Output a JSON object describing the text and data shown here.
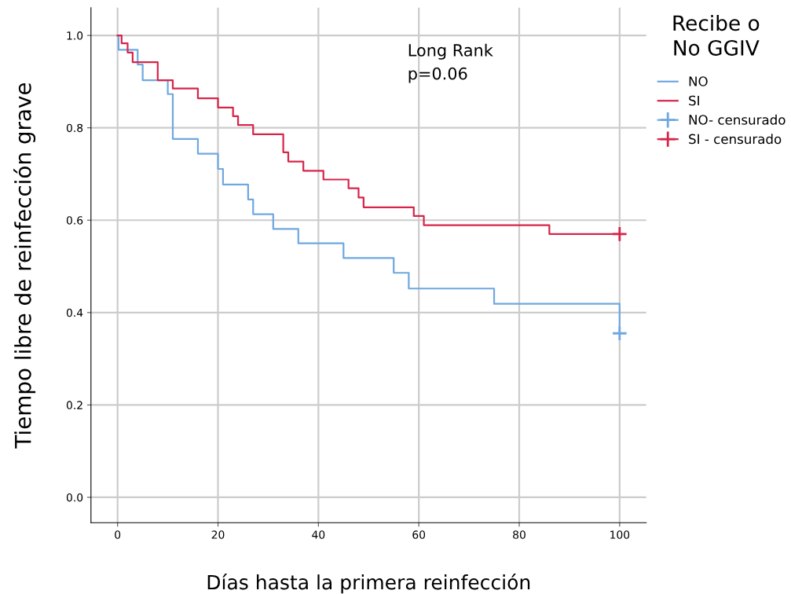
{
  "chart_data": {
    "type": "step",
    "xlabel": "Días hasta la primera reinfección",
    "ylabel": "Tiempo libre de reinfección grave",
    "legend_title": "Recibe o\nNo GGIV",
    "legend": "top right",
    "grid": true,
    "annotations": [
      "Long Rank\np=0.06"
    ],
    "xlim": [
      -5.3,
      105.3
    ],
    "ylim": [
      -0.055,
      1.06
    ],
    "xticks": [
      0,
      20,
      40,
      60,
      80,
      100
    ],
    "yticks": [
      {
        "value": 0,
        "label": "0.0"
      },
      {
        "value": 0.2,
        "label": "0.2"
      },
      {
        "value": 0.4,
        "label": "0.4"
      },
      {
        "value": 0.6,
        "label": "0.6"
      },
      {
        "value": 0.8,
        "label": "0.8"
      },
      {
        "value": 1,
        "label": "1.0"
      }
    ],
    "series": [
      {
        "name": "NO",
        "color": "#6fa8e0",
        "x": [
          0,
          0.2,
          4,
          5,
          10,
          11,
          16,
          20,
          21,
          26,
          27,
          31,
          36,
          45,
          55,
          58,
          75,
          100,
          100
        ],
        "values": [
          1.0,
          0.969,
          0.937,
          0.903,
          0.873,
          0.776,
          0.744,
          0.711,
          0.677,
          0.645,
          0.613,
          0.581,
          0.55,
          0.518,
          0.486,
          0.452,
          0.419,
          0.355,
          0.355
        ]
      },
      {
        "name": "SI",
        "color": "#d6254a",
        "x": [
          0,
          0.8,
          2,
          3,
          8,
          11,
          16,
          20,
          23,
          24,
          27,
          33,
          34,
          37,
          41,
          46,
          48,
          49,
          59,
          61,
          86,
          100
        ],
        "values": [
          1.0,
          0.983,
          0.963,
          0.942,
          0.903,
          0.885,
          0.864,
          0.844,
          0.825,
          0.806,
          0.786,
          0.747,
          0.727,
          0.707,
          0.688,
          0.669,
          0.649,
          0.628,
          0.609,
          0.589,
          0.57,
          0.57
        ]
      },
      {
        "name": "NO- censurado",
        "type": "scatter",
        "marker": "cross",
        "color": "#6fa8e0",
        "x": [
          100
        ],
        "values": [
          0.355
        ]
      },
      {
        "name": "SI - censurado",
        "type": "scatter",
        "marker": "cross",
        "color": "#d6254a",
        "x": [
          100
        ],
        "values": [
          0.57
        ]
      }
    ]
  }
}
